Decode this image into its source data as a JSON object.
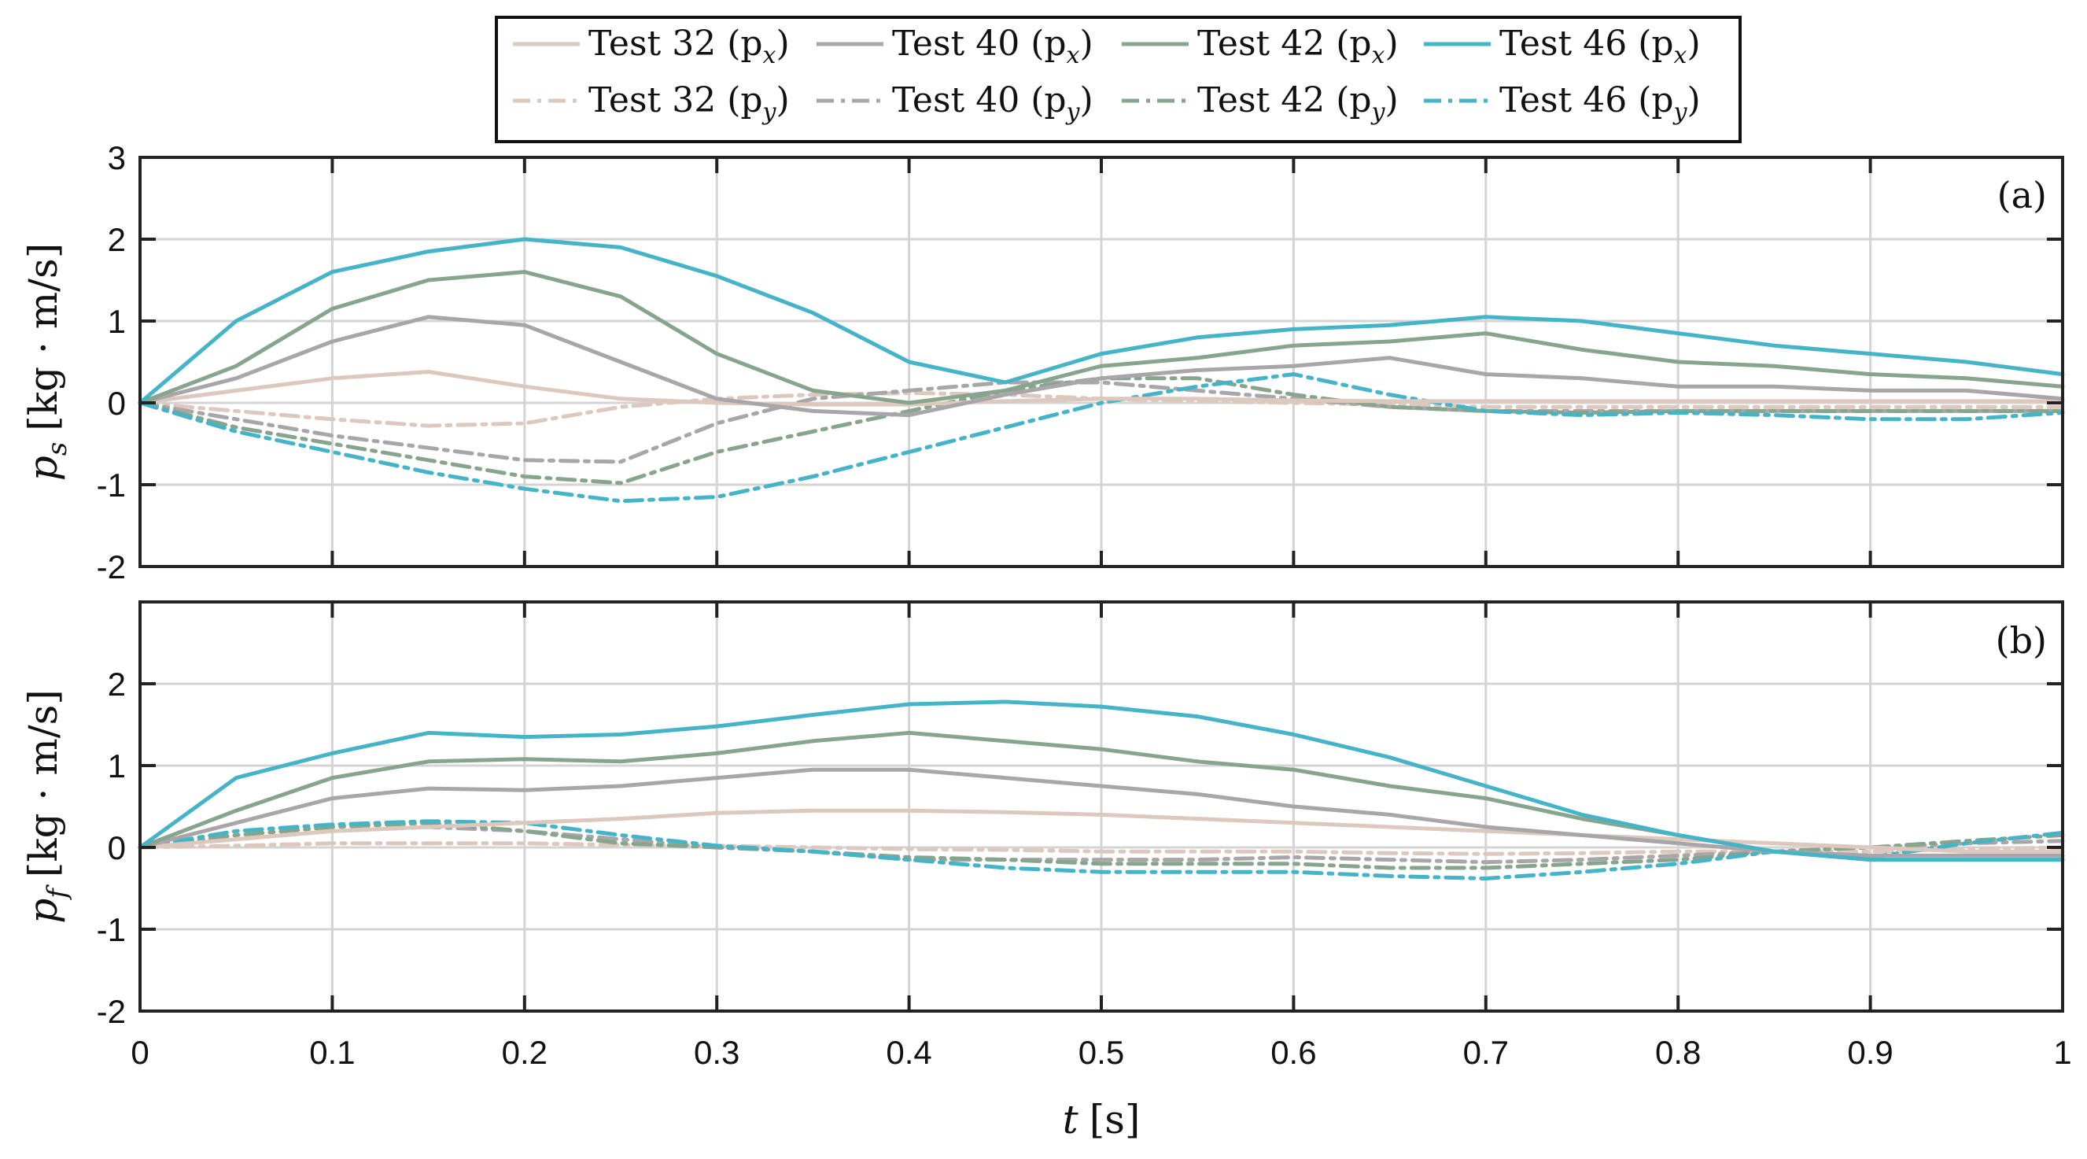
{
  "chart_data": {
    "type": "line",
    "x": [
      0,
      0.05,
      0.1,
      0.15,
      0.2,
      0.25,
      0.3,
      0.35,
      0.4,
      0.45,
      0.5,
      0.55,
      0.6,
      0.65,
      0.7,
      0.75,
      0.8,
      0.85,
      0.9,
      0.95,
      1.0
    ],
    "xlim": [
      0,
      1
    ],
    "xticks": [
      "0",
      "0.1",
      "0.2",
      "0.3",
      "0.4",
      "0.5",
      "0.6",
      "0.7",
      "0.8",
      "0.9",
      "1"
    ],
    "xlabel": {
      "var": "t",
      "unit": "[s]"
    },
    "legend": {
      "row1": [
        "Test 32 (p",
        "Test 40 (p",
        "Test 42 (p",
        "Test 46 (p"
      ],
      "row1_sub": "x",
      "row2": [
        "Test 32 (p",
        "Test 40 (p",
        "Test 42 (p",
        "Test 46 (p"
      ],
      "row2_sub": "y",
      "position": "top-center"
    },
    "colors": {
      "t32": "#dcc8bc",
      "t40": "#a9a6aa",
      "t42": "#87a58c",
      "t46": "#45b4c8"
    },
    "panels": [
      {
        "label": "(a)",
        "ylabel": {
          "var": "p",
          "sub": "s",
          "unit": "[kg · m/s]"
        },
        "ylim": [
          -2,
          3
        ],
        "yticks": [
          "3",
          "2",
          "1",
          "0",
          "-1",
          "-2"
        ],
        "series": [
          {
            "name": "Test 32 (px)",
            "color": "t32",
            "style": "solid",
            "values": [
              0,
              0.15,
              0.3,
              0.38,
              0.2,
              0.05,
              0.0,
              -0.02,
              -0.02,
              0.02,
              0.05,
              0.05,
              0.03,
              0.02,
              0.02,
              0.02,
              0.02,
              0.02,
              0.02,
              0.02,
              0.02
            ]
          },
          {
            "name": "Test 40 (px)",
            "color": "t40",
            "style": "solid",
            "values": [
              0,
              0.3,
              0.75,
              1.05,
              0.95,
              0.5,
              0.05,
              -0.1,
              -0.15,
              0.1,
              0.3,
              0.4,
              0.45,
              0.55,
              0.35,
              0.3,
              0.2,
              0.2,
              0.15,
              0.15,
              0.05
            ]
          },
          {
            "name": "Test 42 (px)",
            "color": "t42",
            "style": "solid",
            "values": [
              0,
              0.45,
              1.15,
              1.5,
              1.6,
              1.3,
              0.6,
              0.15,
              0.0,
              0.15,
              0.45,
              0.55,
              0.7,
              0.75,
              0.85,
              0.65,
              0.5,
              0.45,
              0.35,
              0.3,
              0.2
            ]
          },
          {
            "name": "Test 46 (px)",
            "color": "t46",
            "style": "solid",
            "values": [
              0,
              1.0,
              1.6,
              1.85,
              2.0,
              1.9,
              1.55,
              1.1,
              0.5,
              0.25,
              0.6,
              0.8,
              0.9,
              0.95,
              1.05,
              1.0,
              0.85,
              0.7,
              0.6,
              0.5,
              0.35
            ]
          },
          {
            "name": "Test 32 (py)",
            "color": "t32",
            "style": "dashdot",
            "values": [
              0,
              -0.1,
              -0.2,
              -0.28,
              -0.25,
              -0.05,
              0.05,
              0.1,
              0.12,
              0.1,
              0.05,
              0.02,
              0.0,
              -0.02,
              -0.05,
              -0.05,
              -0.05,
              -0.05,
              -0.05,
              -0.05,
              -0.05
            ]
          },
          {
            "name": "Test 40 (py)",
            "color": "t40",
            "style": "dashdot",
            "values": [
              0,
              -0.2,
              -0.4,
              -0.55,
              -0.7,
              -0.72,
              -0.25,
              0.05,
              0.15,
              0.25,
              0.25,
              0.15,
              0.05,
              -0.05,
              -0.1,
              -0.1,
              -0.1,
              -0.1,
              -0.1,
              -0.1,
              -0.1
            ]
          },
          {
            "name": "Test 42 (py)",
            "color": "t42",
            "style": "dashdot",
            "values": [
              0,
              -0.3,
              -0.5,
              -0.7,
              -0.9,
              -0.98,
              -0.6,
              -0.35,
              -0.1,
              0.15,
              0.3,
              0.3,
              0.1,
              -0.05,
              -0.1,
              -0.12,
              -0.1,
              -0.1,
              -0.1,
              -0.1,
              -0.1
            ]
          },
          {
            "name": "Test 46 (py)",
            "color": "t46",
            "style": "dashdot",
            "values": [
              0,
              -0.35,
              -0.6,
              -0.85,
              -1.05,
              -1.2,
              -1.15,
              -0.9,
              -0.6,
              -0.3,
              0.0,
              0.2,
              0.35,
              0.1,
              -0.1,
              -0.15,
              -0.12,
              -0.15,
              -0.2,
              -0.2,
              -0.12
            ]
          }
        ]
      },
      {
        "label": "(b)",
        "ylabel": {
          "var": "p",
          "sub": "f",
          "unit": "[kg · m/s]"
        },
        "ylim": [
          -2,
          3
        ],
        "yticks": [
          "2",
          "1",
          "0",
          "-1",
          "-2"
        ],
        "series": [
          {
            "name": "Test 32 (px)",
            "color": "t32",
            "style": "solid",
            "values": [
              0,
              0.1,
              0.2,
              0.25,
              0.3,
              0.35,
              0.42,
              0.45,
              0.45,
              0.43,
              0.4,
              0.35,
              0.3,
              0.25,
              0.2,
              0.15,
              0.1,
              0.05,
              0.0,
              -0.05,
              -0.05
            ]
          },
          {
            "name": "Test 40 (px)",
            "color": "t40",
            "style": "solid",
            "values": [
              0,
              0.3,
              0.6,
              0.72,
              0.7,
              0.75,
              0.85,
              0.95,
              0.95,
              0.85,
              0.75,
              0.65,
              0.5,
              0.4,
              0.25,
              0.15,
              0.05,
              -0.05,
              -0.1,
              -0.1,
              -0.1
            ]
          },
          {
            "name": "Test 42 (px)",
            "color": "t42",
            "style": "solid",
            "values": [
              0,
              0.45,
              0.85,
              1.05,
              1.08,
              1.05,
              1.15,
              1.3,
              1.4,
              1.3,
              1.2,
              1.05,
              0.95,
              0.75,
              0.6,
              0.35,
              0.15,
              -0.05,
              -0.15,
              -0.15,
              -0.15
            ]
          },
          {
            "name": "Test 46 (px)",
            "color": "t46",
            "style": "solid",
            "values": [
              0,
              0.85,
              1.15,
              1.4,
              1.35,
              1.38,
              1.48,
              1.62,
              1.75,
              1.78,
              1.72,
              1.6,
              1.38,
              1.1,
              0.75,
              0.4,
              0.15,
              -0.05,
              -0.15,
              -0.15,
              -0.15
            ]
          },
          {
            "name": "Test 32 (py)",
            "color": "t32",
            "style": "dashdot",
            "values": [
              0,
              0.02,
              0.05,
              0.05,
              0.05,
              0.03,
              0.02,
              0.0,
              -0.02,
              -0.03,
              -0.05,
              -0.05,
              -0.05,
              -0.07,
              -0.08,
              -0.07,
              -0.05,
              -0.05,
              -0.05,
              -0.02,
              0.0
            ]
          },
          {
            "name": "Test 40 (py)",
            "color": "t40",
            "style": "dashdot",
            "values": [
              0,
              0.1,
              0.2,
              0.25,
              0.2,
              0.1,
              0.0,
              -0.05,
              -0.15,
              -0.15,
              -0.15,
              -0.15,
              -0.12,
              -0.15,
              -0.18,
              -0.15,
              -0.1,
              -0.05,
              0.0,
              0.05,
              0.08
            ]
          },
          {
            "name": "Test 42 (py)",
            "color": "t42",
            "style": "dashdot",
            "values": [
              0,
              0.15,
              0.25,
              0.3,
              0.2,
              0.05,
              0.0,
              -0.05,
              -0.12,
              -0.15,
              -0.2,
              -0.2,
              -0.2,
              -0.25,
              -0.25,
              -0.2,
              -0.15,
              -0.05,
              0.0,
              0.08,
              0.15
            ]
          },
          {
            "name": "Test 46 (py)",
            "color": "t46",
            "style": "dashdot",
            "values": [
              0,
              0.2,
              0.28,
              0.32,
              0.3,
              0.15,
              0.02,
              -0.05,
              -0.15,
              -0.25,
              -0.3,
              -0.3,
              -0.3,
              -0.35,
              -0.38,
              -0.3,
              -0.2,
              -0.05,
              -0.12,
              0.05,
              0.18
            ]
          }
        ]
      }
    ]
  }
}
